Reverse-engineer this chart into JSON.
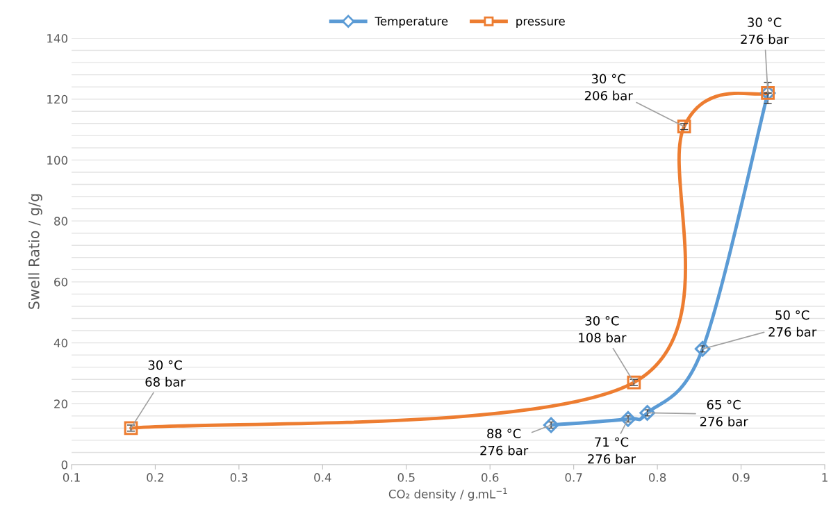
{
  "chart_data": {
    "type": "line",
    "xlabel": "CO₂ density / g.mL$^{−1}$",
    "ylabel": "Swell Ratio / g/g",
    "xlim": [
      0.1,
      1
    ],
    "xticks": [
      0.1,
      0.2,
      0.3,
      0.4,
      0.5,
      0.6,
      0.7,
      0.8,
      0.9,
      1
    ],
    "ylim": [
      0,
      140
    ],
    "yticks": [
      0,
      {
        "value": 4,
        "label": null
      },
      {
        "value": 8,
        "label": null
      },
      {
        "value": 12,
        "label": null
      },
      {
        "value": 16,
        "label": null
      },
      20,
      {
        "value": 24,
        "label": null
      },
      {
        "value": 28,
        "label": null
      },
      {
        "value": 32,
        "label": null
      },
      {
        "value": 36,
        "label": null
      },
      40,
      {
        "value": 44,
        "label": null
      },
      {
        "value": 48,
        "label": null
      },
      {
        "value": 52,
        "label": null
      },
      {
        "value": 56,
        "label": null
      },
      60,
      {
        "value": 64,
        "label": null
      },
      {
        "value": 68,
        "label": null
      },
      {
        "value": 72,
        "label": null
      },
      {
        "value": 76,
        "label": null
      },
      80,
      {
        "value": 84,
        "label": null
      },
      {
        "value": 88,
        "label": null
      },
      {
        "value": 92,
        "label": null
      },
      {
        "value": 96,
        "label": null
      },
      100,
      {
        "value": 104,
        "label": null
      },
      {
        "value": 108,
        "label": null
      },
      {
        "value": 112,
        "label": null
      },
      {
        "value": 116,
        "label": null
      },
      120,
      {
        "value": 124,
        "label": null
      },
      {
        "value": 128,
        "label": null
      },
      {
        "value": 132,
        "label": null
      },
      {
        "value": 136,
        "label": null
      },
      140
    ],
    "grid": "y",
    "legend": "top",
    "series": [
      {
        "name": "Temperature",
        "color": "#5b9bd5",
        "marker": "diamond",
        "x": [
          0.673,
          0.765,
          0.788,
          0.854,
          0.932
        ],
        "values": [
          13,
          15,
          17,
          38,
          122
        ],
        "errors": [
          1,
          1,
          1,
          1,
          null
        ]
      },
      {
        "name": "pressure",
        "color": "#ed7d31",
        "marker": "square",
        "x": [
          0.171,
          0.772,
          0.832,
          0.932
        ],
        "values": [
          12,
          27,
          111,
          122
        ],
        "errors": [
          1,
          1,
          1,
          3.5
        ]
      }
    ],
    "annotations": [
      {
        "text": "30 °C\n68 bar",
        "x": 0.171,
        "y": 12
      },
      {
        "text": "30 °C\n108 bar",
        "x": 0.772,
        "y": 27
      },
      {
        "text": "30 °C\n206 bar",
        "x": 0.832,
        "y": 111
      },
      {
        "text": "30 °C\n276 bar",
        "x": 0.932,
        "y": 122
      },
      {
        "text": "50 °C\n276 bar",
        "x": 0.854,
        "y": 38
      },
      {
        "text": "65 °C\n276 bar",
        "x": 0.788,
        "y": 17
      },
      {
        "text": "71 °C\n276 bar",
        "x": 0.765,
        "y": 15
      },
      {
        "text": "88 °C\n276 bar",
        "x": 0.673,
        "y": 13
      }
    ]
  }
}
